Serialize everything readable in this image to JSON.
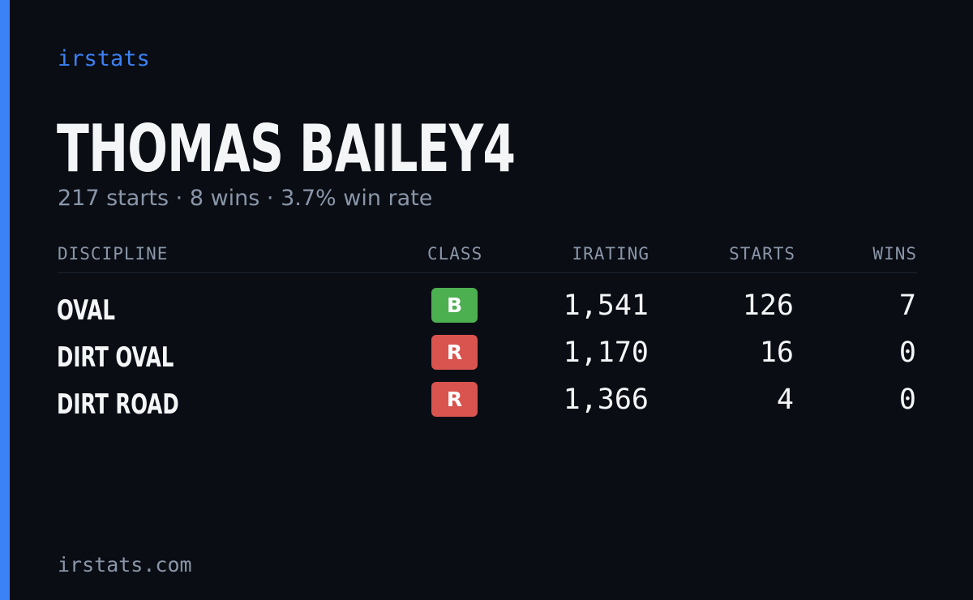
{
  "brand": "irstats",
  "driver": {
    "name": "THOMAS BAILEY4",
    "summary": "217 starts · 8 wins · 3.7% win rate"
  },
  "table": {
    "headers": {
      "discipline": "DISCIPLINE",
      "class": "CLASS",
      "irating": "IRATING",
      "starts": "STARTS",
      "wins": "WINS"
    },
    "rows": [
      {
        "discipline": "OVAL",
        "class": "B",
        "class_color": "#4caf50",
        "irating": "1,541",
        "starts": "126",
        "wins": "7"
      },
      {
        "discipline": "DIRT OVAL",
        "class": "R",
        "class_color": "#d9534f",
        "irating": "1,170",
        "starts": "16",
        "wins": "0"
      },
      {
        "discipline": "DIRT ROAD",
        "class": "R",
        "class_color": "#d9534f",
        "irating": "1,366",
        "starts": "4",
        "wins": "0"
      }
    ]
  },
  "footer": "irstats.com",
  "colors": {
    "accent": "#3b82f6",
    "background": "#0a0d14",
    "muted": "#8a96a8",
    "text": "#f4f5f7"
  }
}
